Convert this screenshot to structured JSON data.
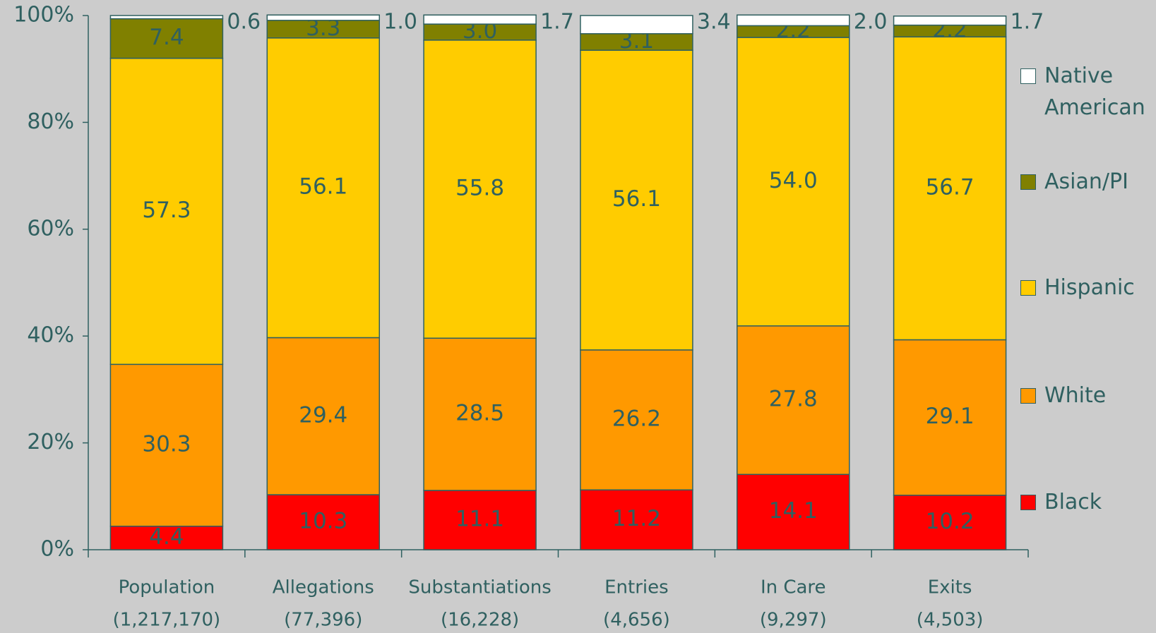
{
  "chart_data": {
    "type": "stacked_bar",
    "categories": [
      "Population",
      "Allegations",
      "Substantiations",
      "Entries",
      "In Care",
      "Exits"
    ],
    "category_counts": [
      "(1,217,170)",
      "(77,396)",
      "(16,228)",
      "(4,656)",
      "(9,297)",
      "(4,503)"
    ],
    "series": [
      {
        "name": "Black",
        "color": "#ff0000",
        "values": [
          4.4,
          10.3,
          11.1,
          11.2,
          14.1,
          10.2
        ],
        "value_labels": [
          "4.4",
          "10.3",
          "11.1",
          "11.2",
          "14.1",
          "10.2"
        ]
      },
      {
        "name": "White",
        "color": "#ff9900",
        "values": [
          30.3,
          29.4,
          28.5,
          26.2,
          27.8,
          29.1
        ],
        "value_labels": [
          "30.3",
          "29.4",
          "28.5",
          "26.2",
          "27.8",
          "29.1"
        ]
      },
      {
        "name": "Hispanic",
        "color": "#ffcc00",
        "values": [
          57.3,
          56.1,
          55.8,
          56.1,
          54.0,
          56.7
        ],
        "value_labels": [
          "57.3",
          "56.1",
          "55.8",
          "56.1",
          "54.0",
          "56.7"
        ]
      },
      {
        "name": "Asian/PI",
        "color": "#808000",
        "values": [
          7.4,
          3.3,
          3.0,
          3.1,
          2.2,
          2.2
        ],
        "value_labels": [
          "7.4",
          "3.3",
          "3.0",
          "3.1",
          "2.2",
          "2.2"
        ]
      },
      {
        "name": "Native American",
        "color": "#ffffff",
        "values": [
          0.6,
          1.0,
          1.7,
          3.4,
          2.0,
          1.7
        ],
        "value_labels": [
          "0.6",
          "1.0",
          "1.7",
          "3.4",
          "2.0",
          "1.7"
        ]
      }
    ],
    "ylim": [
      0,
      100
    ],
    "yticks": [
      {
        "value": 0,
        "label": "0%"
      },
      {
        "value": 20,
        "label": "20%"
      },
      {
        "value": 40,
        "label": "40%"
      },
      {
        "value": 60,
        "label": "60%"
      },
      {
        "value": 80,
        "label": "80%"
      },
      {
        "value": 100,
        "label": "100%"
      }
    ],
    "legend": "right"
  }
}
